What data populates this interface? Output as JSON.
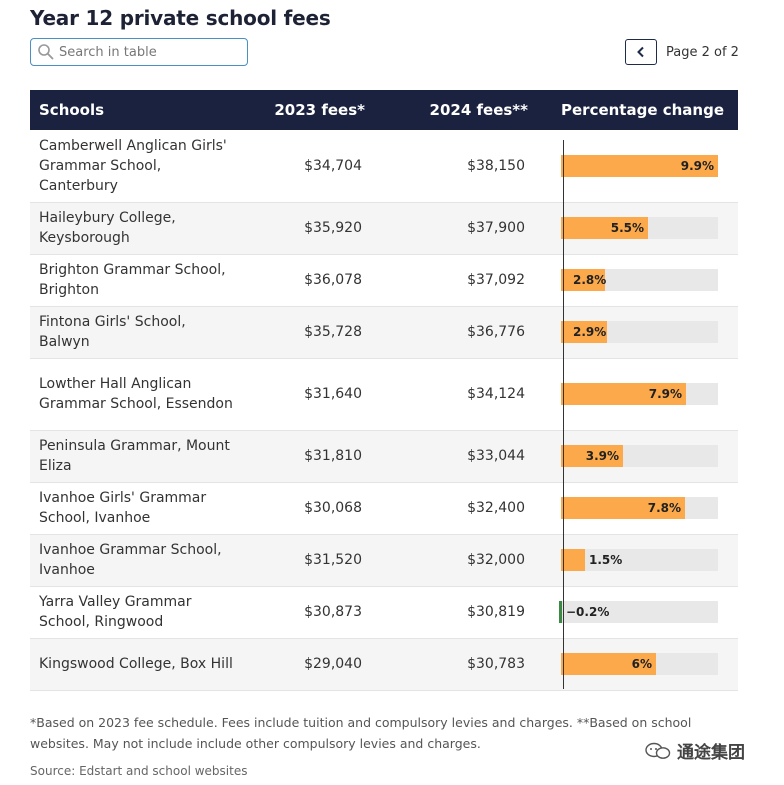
{
  "title": "Year 12 private school fees",
  "search": {
    "placeholder": "Search in table",
    "value": ""
  },
  "pagination": {
    "label": "Page 2 of 2"
  },
  "table": {
    "columns": [
      "Schools",
      "2023 fees*",
      "2024 fees**",
      "Percentage change"
    ],
    "rows": [
      {
        "school": "Camberwell Anglican Girls' Grammar School, Canterbury",
        "fees2023": "$34,704",
        "fees2024": "$38,150",
        "change": 9.9,
        "change_label": "9.9%"
      },
      {
        "school": "Haileybury College, Keysborough",
        "fees2023": "$35,920",
        "fees2024": "$37,900",
        "change": 5.5,
        "change_label": "5.5%"
      },
      {
        "school": "Brighton Grammar School, Brighton",
        "fees2023": "$36,078",
        "fees2024": "$37,092",
        "change": 2.8,
        "change_label": "2.8%"
      },
      {
        "school": "Fintona Girls' School, Balwyn",
        "fees2023": "$35,728",
        "fees2024": "$36,776",
        "change": 2.9,
        "change_label": "2.9%"
      },
      {
        "school": "Lowther Hall Anglican Grammar School, Essendon",
        "fees2023": "$31,640",
        "fees2024": "$34,124",
        "change": 7.9,
        "change_label": "7.9%"
      },
      {
        "school": "Peninsula Grammar, Mount Eliza",
        "fees2023": "$31,810",
        "fees2024": "$33,044",
        "change": 3.9,
        "change_label": "3.9%"
      },
      {
        "school": "Ivanhoe Girls' Grammar School, Ivanhoe",
        "fees2023": "$30,068",
        "fees2024": "$32,400",
        "change": 7.8,
        "change_label": "7.8%"
      },
      {
        "school": "Ivanhoe Grammar School, Ivanhoe",
        "fees2023": "$31,520",
        "fees2024": "$32,000",
        "change": 1.5,
        "change_label": "1.5%"
      },
      {
        "school": "Yarra Valley Grammar School, Ringwood",
        "fees2023": "$30,873",
        "fees2024": "$30,819",
        "change": -0.2,
        "change_label": "−0.2%"
      },
      {
        "school": "Kingswood College, Box Hill",
        "fees2023": "$29,040",
        "fees2024": "$30,783",
        "change": 6,
        "change_label": "6%"
      }
    ],
    "bar_max": 9.9
  },
  "footnote": "*Based on 2023 fee schedule. Fees include tuition and compulsory levies and charges. **Based on school websites. May not include include other compulsory levies and charges.",
  "source": "Source: Edstart and school websites",
  "watermark": "通途集团",
  "colors": {
    "header": "#1b2240",
    "bar": "#fba94b",
    "negative": "#3a8a43",
    "track": "#e8e8e8"
  },
  "icons": {
    "search": "search-icon",
    "prev": "chevron-left-icon"
  }
}
